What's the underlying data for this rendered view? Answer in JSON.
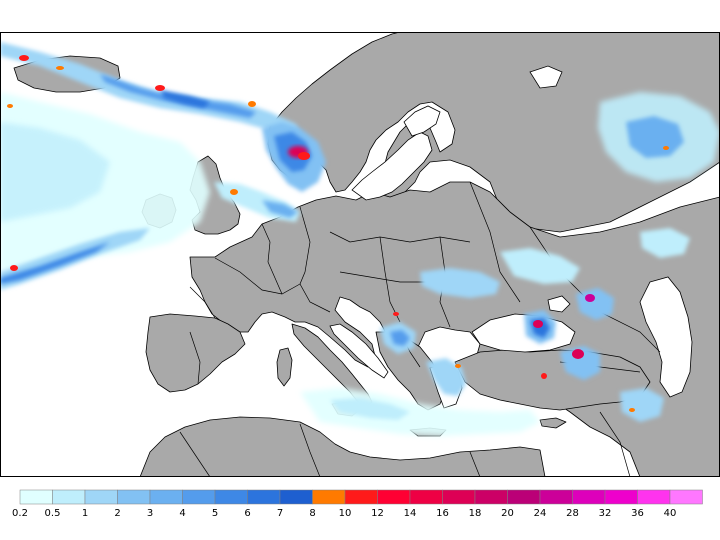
{
  "map": {
    "colors": {
      "land": "#a9a9a9",
      "sea": "#ffffff",
      "border": "#000000"
    }
  },
  "legend": {
    "bins": [
      {
        "label": "0.2",
        "color": "#e0ffff"
      },
      {
        "label": "0.5",
        "color": "#bfeefc"
      },
      {
        "label": "1",
        "color": "#9fd6f7"
      },
      {
        "label": "2",
        "color": "#82c1f3"
      },
      {
        "label": "3",
        "color": "#6bb0f0"
      },
      {
        "label": "4",
        "color": "#549cec"
      },
      {
        "label": "5",
        "color": "#3e88e6"
      },
      {
        "label": "6",
        "color": "#2c74dd"
      },
      {
        "label": "7",
        "color": "#1e5fd0"
      },
      {
        "label": "8",
        "color": "#ff7a00"
      },
      {
        "label": "10",
        "color": "#ff1a1a"
      },
      {
        "label": "12",
        "color": "#ff0033"
      },
      {
        "label": "14",
        "color": "#ee0044"
      },
      {
        "label": "16",
        "color": "#dd0055"
      },
      {
        "label": "18",
        "color": "#cc0066"
      },
      {
        "label": "20",
        "color": "#bb0077"
      },
      {
        "label": "24",
        "color": "#cc0099"
      },
      {
        "label": "28",
        "color": "#dd00bb"
      },
      {
        "label": "32",
        "color": "#ee00cc"
      },
      {
        "label": "36",
        "color": "#ff33ee"
      },
      {
        "label": "40",
        "color": "#ff77ff"
      }
    ]
  }
}
